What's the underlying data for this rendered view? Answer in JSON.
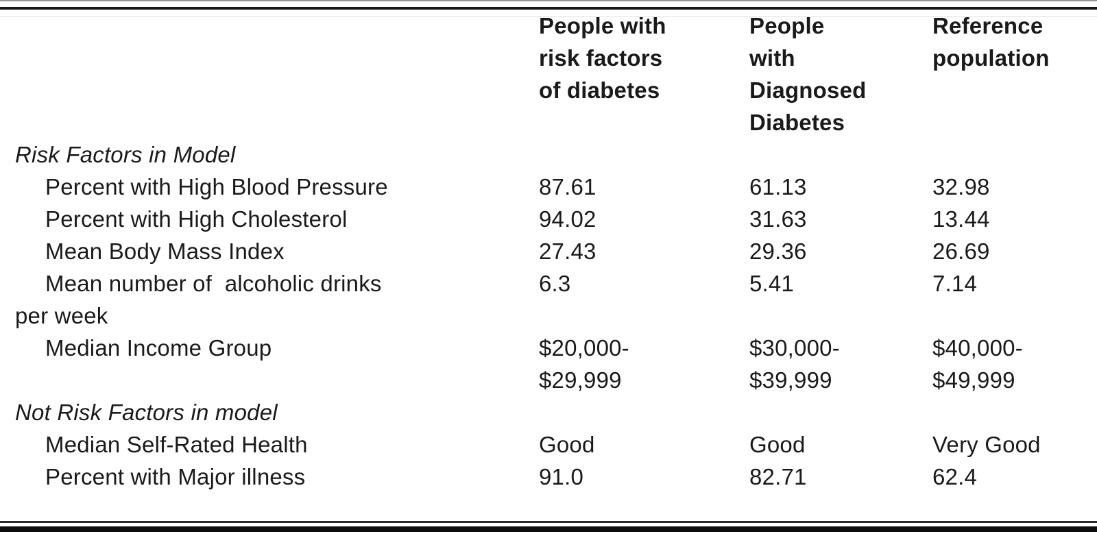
{
  "table": {
    "columns": [
      "People with\nrisk factors\nof diabetes",
      "People\nwith\nDiagnosed\nDiabetes",
      "Reference\npopulation"
    ],
    "sections": [
      {
        "title": "Risk Factors in Model",
        "rows": [
          {
            "label": "Percent with High Blood Pressure",
            "values": [
              "87.61",
              "61.13",
              "32.98"
            ]
          },
          {
            "label": "Percent with High Cholesterol",
            "values": [
              "94.02",
              "31.63",
              "13.44"
            ]
          },
          {
            "label": "Mean Body Mass Index",
            "values": [
              "27.43",
              "29.36",
              "26.69"
            ]
          },
          {
            "label": "Mean number of  alcoholic drinks\nper week",
            "values": [
              "6.3",
              "5.41",
              "7.14"
            ]
          },
          {
            "label": "Median Income Group",
            "values": [
              "$20,000-\n$29,999",
              "$30,000-\n$39,999",
              "$40,000-\n$49,999"
            ]
          }
        ]
      },
      {
        "title": "Not Risk Factors in model",
        "rows": [
          {
            "label": "Median Self-Rated Health",
            "values": [
              "Good",
              "Good",
              "Very Good"
            ]
          },
          {
            "label": "Percent with Major illness",
            "values": [
              "91.0",
              "82.71",
              "62.4"
            ]
          }
        ]
      }
    ]
  },
  "colors": {
    "text": "#1a1a1a",
    "rule": "#0c0c0c",
    "background": "#ffffff"
  }
}
